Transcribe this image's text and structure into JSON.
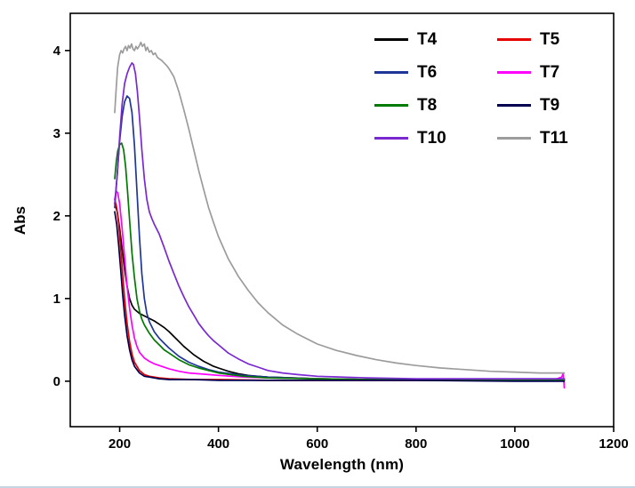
{
  "chart_data": {
    "type": "line",
    "title": "",
    "xlabel": "Wavelength (nm)",
    "ylabel": "Abs",
    "xlim": [
      100,
      1200
    ],
    "ylim": [
      -0.55,
      4.45
    ],
    "xticks": [
      200,
      400,
      600,
      800,
      1000,
      1200
    ],
    "yticks": [
      0,
      1,
      2,
      3,
      4
    ],
    "grid": false,
    "legend_position": "top-right-inside",
    "legend_columns": 2,
    "series": [
      {
        "name": "T4",
        "color": "#000000",
        "points": [
          [
            190,
            2.15
          ],
          [
            195,
            2.05
          ],
          [
            200,
            1.85
          ],
          [
            205,
            1.6
          ],
          [
            210,
            1.35
          ],
          [
            215,
            1.15
          ],
          [
            220,
            1.0
          ],
          [
            225,
            0.92
          ],
          [
            230,
            0.87
          ],
          [
            240,
            0.82
          ],
          [
            250,
            0.79
          ],
          [
            260,
            0.76
          ],
          [
            270,
            0.73
          ],
          [
            280,
            0.69
          ],
          [
            290,
            0.65
          ],
          [
            300,
            0.6
          ],
          [
            310,
            0.54
          ],
          [
            320,
            0.48
          ],
          [
            330,
            0.42
          ],
          [
            340,
            0.37
          ],
          [
            350,
            0.32
          ],
          [
            360,
            0.28
          ],
          [
            370,
            0.24
          ],
          [
            380,
            0.21
          ],
          [
            390,
            0.18
          ],
          [
            400,
            0.16
          ],
          [
            420,
            0.12
          ],
          [
            440,
            0.09
          ],
          [
            460,
            0.07
          ],
          [
            480,
            0.06
          ],
          [
            500,
            0.05
          ],
          [
            550,
            0.04
          ],
          [
            600,
            0.03
          ],
          [
            700,
            0.02
          ],
          [
            800,
            0.02
          ],
          [
            1000,
            0.02
          ],
          [
            1100,
            0.02
          ]
        ]
      },
      {
        "name": "T5",
        "color": "#e60000",
        "points": [
          [
            190,
            2.2
          ],
          [
            194,
            2.1
          ],
          [
            198,
            1.9
          ],
          [
            202,
            1.6
          ],
          [
            206,
            1.3
          ],
          [
            210,
            1.0
          ],
          [
            215,
            0.7
          ],
          [
            220,
            0.48
          ],
          [
            225,
            0.33
          ],
          [
            230,
            0.23
          ],
          [
            240,
            0.13
          ],
          [
            250,
            0.08
          ],
          [
            260,
            0.06
          ],
          [
            280,
            0.04
          ],
          [
            300,
            0.03
          ],
          [
            350,
            0.02
          ],
          [
            400,
            0.02
          ],
          [
            500,
            0.01
          ],
          [
            600,
            0.01
          ],
          [
            800,
            0.01
          ],
          [
            1000,
            0.01
          ],
          [
            1100,
            0.01
          ]
        ]
      },
      {
        "name": "T6",
        "color": "#1f3699",
        "points": [
          [
            190,
            2.1
          ],
          [
            195,
            2.5
          ],
          [
            200,
            2.9
          ],
          [
            205,
            3.2
          ],
          [
            210,
            3.38
          ],
          [
            215,
            3.45
          ],
          [
            220,
            3.42
          ],
          [
            225,
            3.25
          ],
          [
            230,
            2.85
          ],
          [
            235,
            2.3
          ],
          [
            240,
            1.75
          ],
          [
            245,
            1.3
          ],
          [
            250,
            1.0
          ],
          [
            255,
            0.82
          ],
          [
            260,
            0.72
          ],
          [
            270,
            0.6
          ],
          [
            280,
            0.52
          ],
          [
            290,
            0.46
          ],
          [
            300,
            0.4
          ],
          [
            320,
            0.3
          ],
          [
            340,
            0.23
          ],
          [
            360,
            0.18
          ],
          [
            380,
            0.14
          ],
          [
            400,
            0.11
          ],
          [
            450,
            0.07
          ],
          [
            500,
            0.05
          ],
          [
            600,
            0.03
          ],
          [
            700,
            0.02
          ],
          [
            800,
            0.02
          ],
          [
            1000,
            0.02
          ],
          [
            1100,
            0.02
          ]
        ]
      },
      {
        "name": "T7",
        "color": "#ff00ff",
        "points": [
          [
            190,
            2.2
          ],
          [
            193,
            2.3
          ],
          [
            196,
            2.28
          ],
          [
            200,
            2.15
          ],
          [
            205,
            1.85
          ],
          [
            210,
            1.5
          ],
          [
            215,
            1.15
          ],
          [
            220,
            0.88
          ],
          [
            225,
            0.68
          ],
          [
            230,
            0.52
          ],
          [
            235,
            0.42
          ],
          [
            240,
            0.35
          ],
          [
            250,
            0.28
          ],
          [
            260,
            0.24
          ],
          [
            270,
            0.21
          ],
          [
            280,
            0.19
          ],
          [
            300,
            0.15
          ],
          [
            320,
            0.12
          ],
          [
            340,
            0.1
          ],
          [
            360,
            0.09
          ],
          [
            380,
            0.08
          ],
          [
            400,
            0.07
          ],
          [
            450,
            0.05
          ],
          [
            500,
            0.04
          ],
          [
            600,
            0.03
          ],
          [
            700,
            0.02
          ],
          [
            800,
            0.02
          ],
          [
            900,
            0.02
          ],
          [
            1000,
            0.02
          ],
          [
            1080,
            0.02
          ],
          [
            1095,
            0.05
          ],
          [
            1098,
            0.1
          ],
          [
            1100,
            -0.08
          ]
        ]
      },
      {
        "name": "T8",
        "color": "#007a00",
        "points": [
          [
            190,
            2.45
          ],
          [
            193,
            2.65
          ],
          [
            196,
            2.78
          ],
          [
            200,
            2.86
          ],
          [
            204,
            2.88
          ],
          [
            208,
            2.8
          ],
          [
            212,
            2.6
          ],
          [
            216,
            2.3
          ],
          [
            220,
            1.95
          ],
          [
            225,
            1.55
          ],
          [
            230,
            1.25
          ],
          [
            235,
            1.0
          ],
          [
            240,
            0.85
          ],
          [
            245,
            0.75
          ],
          [
            250,
            0.68
          ],
          [
            260,
            0.58
          ],
          [
            270,
            0.5
          ],
          [
            280,
            0.44
          ],
          [
            290,
            0.38
          ],
          [
            300,
            0.34
          ],
          [
            320,
            0.26
          ],
          [
            340,
            0.2
          ],
          [
            360,
            0.16
          ],
          [
            380,
            0.13
          ],
          [
            400,
            0.1
          ],
          [
            450,
            0.06
          ],
          [
            500,
            0.04
          ],
          [
            600,
            0.03
          ],
          [
            700,
            0.02
          ],
          [
            800,
            0.02
          ],
          [
            1000,
            0.02
          ],
          [
            1100,
            0.02
          ]
        ]
      },
      {
        "name": "T9",
        "color": "#000050",
        "points": [
          [
            190,
            2.05
          ],
          [
            194,
            1.9
          ],
          [
            198,
            1.65
          ],
          [
            202,
            1.35
          ],
          [
            206,
            1.05
          ],
          [
            210,
            0.8
          ],
          [
            215,
            0.55
          ],
          [
            220,
            0.38
          ],
          [
            225,
            0.26
          ],
          [
            230,
            0.18
          ],
          [
            240,
            0.1
          ],
          [
            250,
            0.06
          ],
          [
            260,
            0.05
          ],
          [
            280,
            0.03
          ],
          [
            300,
            0.02
          ],
          [
            350,
            0.02
          ],
          [
            400,
            0.01
          ],
          [
            500,
            0.01
          ],
          [
            600,
            0.01
          ],
          [
            800,
            0.01
          ],
          [
            1000,
            0.0
          ],
          [
            1100,
            0.0
          ]
        ]
      },
      {
        "name": "T10",
        "color": "#7a28d2",
        "points": [
          [
            190,
            2.15
          ],
          [
            195,
            2.5
          ],
          [
            200,
            2.95
          ],
          [
            205,
            3.35
          ],
          [
            210,
            3.6
          ],
          [
            215,
            3.72
          ],
          [
            220,
            3.8
          ],
          [
            225,
            3.85
          ],
          [
            228,
            3.83
          ],
          [
            232,
            3.72
          ],
          [
            236,
            3.5
          ],
          [
            240,
            3.2
          ],
          [
            245,
            2.8
          ],
          [
            250,
            2.45
          ],
          [
            255,
            2.2
          ],
          [
            260,
            2.05
          ],
          [
            265,
            1.97
          ],
          [
            270,
            1.9
          ],
          [
            280,
            1.78
          ],
          [
            290,
            1.62
          ],
          [
            300,
            1.45
          ],
          [
            310,
            1.3
          ],
          [
            320,
            1.15
          ],
          [
            330,
            1.02
          ],
          [
            340,
            0.9
          ],
          [
            350,
            0.8
          ],
          [
            360,
            0.7
          ],
          [
            370,
            0.62
          ],
          [
            380,
            0.55
          ],
          [
            390,
            0.49
          ],
          [
            400,
            0.44
          ],
          [
            420,
            0.34
          ],
          [
            440,
            0.27
          ],
          [
            460,
            0.21
          ],
          [
            480,
            0.17
          ],
          [
            500,
            0.13
          ],
          [
            530,
            0.1
          ],
          [
            560,
            0.08
          ],
          [
            600,
            0.06
          ],
          [
            650,
            0.05
          ],
          [
            700,
            0.04
          ],
          [
            800,
            0.03
          ],
          [
            900,
            0.03
          ],
          [
            1000,
            0.03
          ],
          [
            1100,
            0.03
          ]
        ]
      },
      {
        "name": "T11",
        "color": "#9c9c9c",
        "points": [
          [
            190,
            3.25
          ],
          [
            193,
            3.55
          ],
          [
            196,
            3.8
          ],
          [
            200,
            3.95
          ],
          [
            203,
            4.0
          ],
          [
            206,
            3.97
          ],
          [
            209,
            4.02
          ],
          [
            212,
            4.05
          ],
          [
            215,
            4.0
          ],
          [
            218,
            4.06
          ],
          [
            221,
            4.03
          ],
          [
            224,
            4.08
          ],
          [
            227,
            4.02
          ],
          [
            230,
            4.0
          ],
          [
            233,
            4.05
          ],
          [
            236,
            4.02
          ],
          [
            240,
            4.06
          ],
          [
            243,
            4.1
          ],
          [
            246,
            4.05
          ],
          [
            250,
            4.08
          ],
          [
            253,
            4.0
          ],
          [
            256,
            4.04
          ],
          [
            260,
            3.98
          ],
          [
            264,
            4.0
          ],
          [
            268,
            3.95
          ],
          [
            272,
            3.97
          ],
          [
            276,
            3.92
          ],
          [
            280,
            3.9
          ],
          [
            285,
            3.88
          ],
          [
            290,
            3.85
          ],
          [
            295,
            3.82
          ],
          [
            300,
            3.78
          ],
          [
            310,
            3.68
          ],
          [
            320,
            3.5
          ],
          [
            330,
            3.28
          ],
          [
            340,
            3.05
          ],
          [
            350,
            2.8
          ],
          [
            360,
            2.55
          ],
          [
            370,
            2.32
          ],
          [
            380,
            2.1
          ],
          [
            390,
            1.92
          ],
          [
            400,
            1.75
          ],
          [
            420,
            1.48
          ],
          [
            440,
            1.27
          ],
          [
            460,
            1.1
          ],
          [
            480,
            0.95
          ],
          [
            500,
            0.83
          ],
          [
            530,
            0.68
          ],
          [
            560,
            0.57
          ],
          [
            600,
            0.45
          ],
          [
            640,
            0.37
          ],
          [
            680,
            0.31
          ],
          [
            720,
            0.26
          ],
          [
            760,
            0.22
          ],
          [
            800,
            0.19
          ],
          [
            850,
            0.16
          ],
          [
            900,
            0.14
          ],
          [
            950,
            0.12
          ],
          [
            1000,
            0.11
          ],
          [
            1050,
            0.1
          ],
          [
            1100,
            0.1
          ]
        ]
      }
    ]
  }
}
